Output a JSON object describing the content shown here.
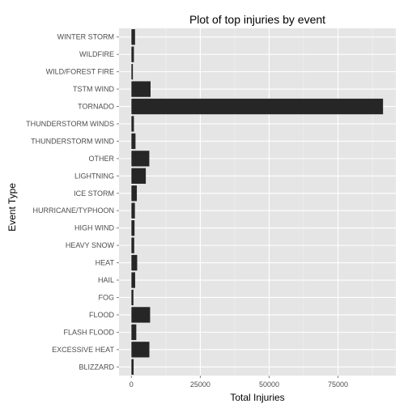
{
  "chart_data": {
    "type": "bar",
    "orientation": "horizontal",
    "title": "Plot of top injuries by event",
    "xlabel": "Total Injuries",
    "ylabel": "Event Type",
    "categories": [
      "WINTER STORM",
      "WILDFIRE",
      "WILD/FOREST FIRE",
      "TSTM WIND",
      "TORNADO",
      "THUNDERSTORM WINDS",
      "THUNDERSTORM WIND",
      "OTHER",
      "LIGHTNING",
      "ICE STORM",
      "HURRICANE/TYPHOON",
      "HIGH WIND",
      "HEAVY SNOW",
      "HEAT",
      "HAIL",
      "FOG",
      "FLOOD",
      "FLASH FLOOD",
      "EXCESSIVE HEAT",
      "BLIZZARD"
    ],
    "values": [
      1321,
      911,
      545,
      6957,
      91346,
      908,
      1488,
      6500,
      5230,
      1975,
      1275,
      1137,
      1021,
      2100,
      1361,
      734,
      6789,
      1777,
      6525,
      805
    ],
    "xlim": [
      -4500,
      96000
    ],
    "xticks": [
      0,
      25000,
      50000,
      75000
    ],
    "xtick_labels": [
      "0",
      "25000",
      "50000",
      "75000"
    ],
    "grid": true,
    "legend": "none",
    "colors": {
      "panel_bg": "#e5e5e5",
      "grid_major": "#ffffff",
      "grid_minor": "#f2f2f2",
      "bar": "#262626",
      "tick_label": "#4d4d4d"
    }
  }
}
